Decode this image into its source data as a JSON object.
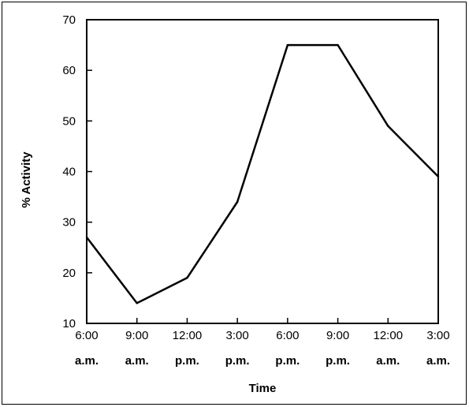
{
  "chart_data": {
    "type": "line",
    "title": "",
    "xlabel": "Time",
    "ylabel": "% Activity",
    "categories": [
      {
        "time": "6:00",
        "period": "a.m."
      },
      {
        "time": "9:00",
        "period": "a.m."
      },
      {
        "time": "12:00",
        "period": "p.m."
      },
      {
        "time": "3:00",
        "period": "p.m."
      },
      {
        "time": "6:00",
        "period": "p.m."
      },
      {
        "time": "9:00",
        "period": "p.m."
      },
      {
        "time": "12:00",
        "period": "a.m."
      },
      {
        "time": "3:00",
        "period": "a.m."
      }
    ],
    "values": [
      27,
      14,
      19,
      34,
      65,
      65,
      49,
      39
    ],
    "yticks": [
      10,
      20,
      30,
      40,
      50,
      60,
      70
    ],
    "ylim": [
      10,
      70
    ],
    "grid": false,
    "legend": "none",
    "line_color": "#000000"
  }
}
